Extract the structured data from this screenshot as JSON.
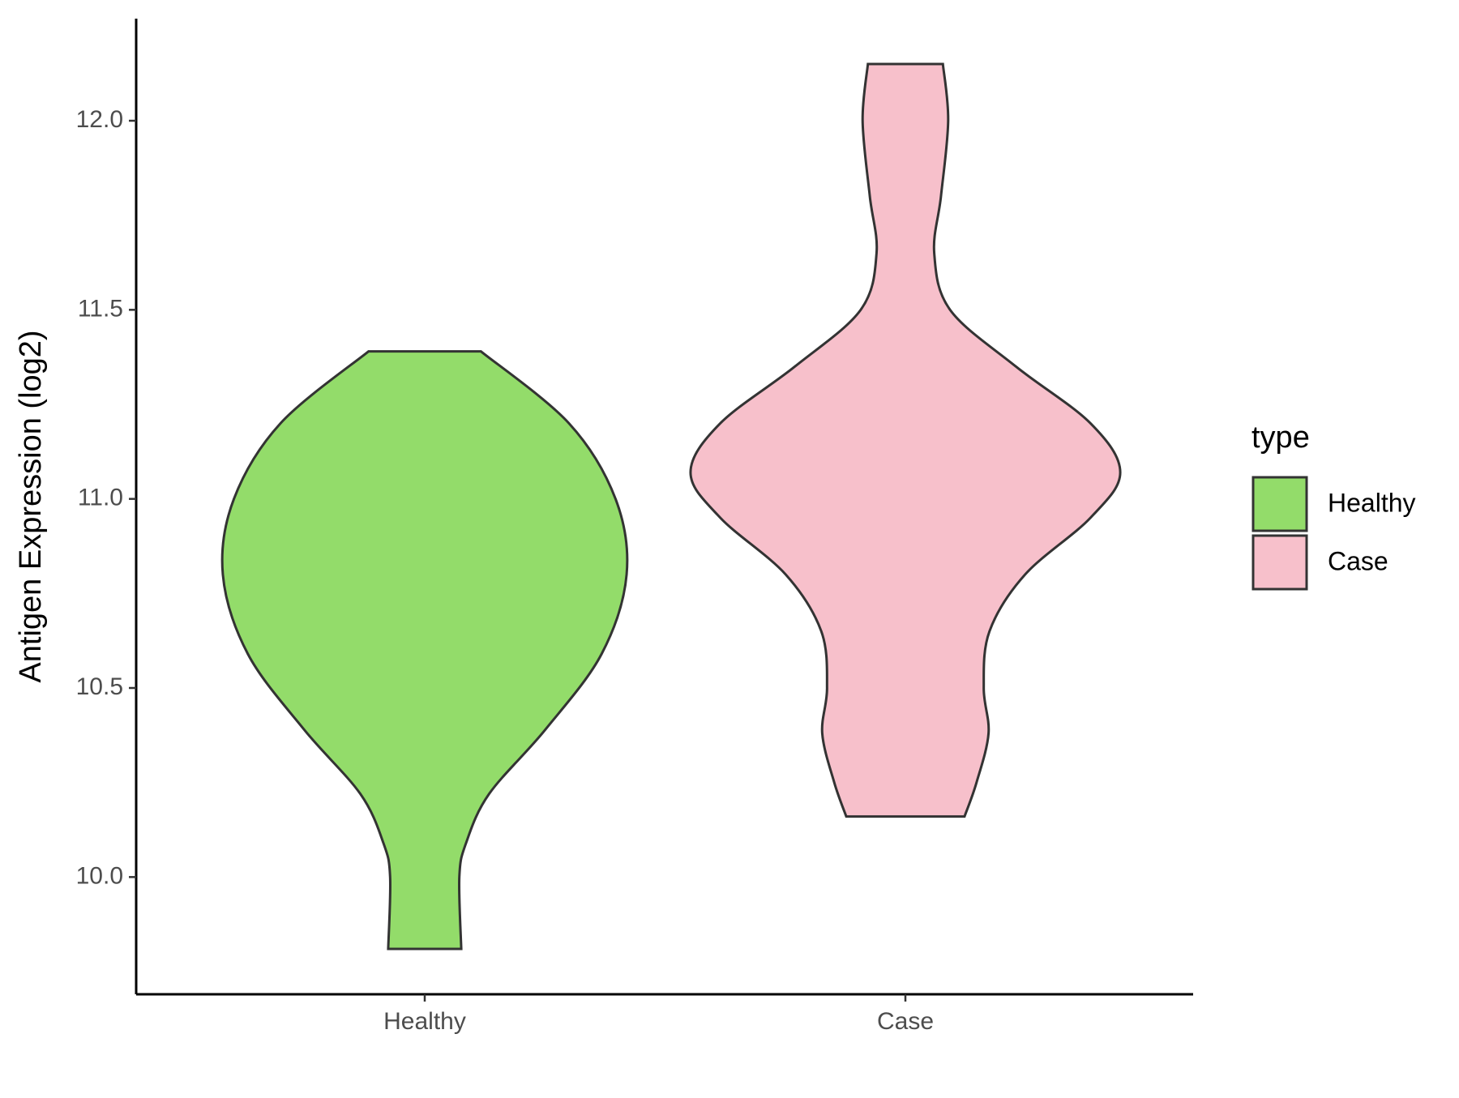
{
  "chart_data": {
    "type": "violin",
    "y_label": "Antigen Expression (log2)",
    "categories": [
      "Healthy",
      "Case"
    ],
    "series": [
      {
        "name": "Healthy",
        "color": "#93dc6a",
        "y": [
          11.39,
          11.2,
          11.0,
          10.8,
          10.59,
          10.39,
          10.22,
          10.09,
          10.0,
          9.81
        ],
        "width": [
          0.117,
          0.3,
          0.397,
          0.42,
          0.368,
          0.251,
          0.134,
          0.086,
          0.072,
          0.076
        ]
      },
      {
        "name": "Case",
        "color": "#f7c0cb",
        "y": [
          12.15,
          12.0,
          11.8,
          11.65,
          11.5,
          11.35,
          11.2,
          11.07,
          10.95,
          10.8,
          10.65,
          10.5,
          10.38,
          10.25,
          10.16
        ],
        "width": [
          0.078,
          0.089,
          0.074,
          0.06,
          0.093,
          0.23,
          0.385,
          0.447,
          0.385,
          0.249,
          0.175,
          0.163,
          0.173,
          0.148,
          0.123
        ]
      }
    ],
    "ylim": [
      9.69,
      12.27
    ],
    "yticks": [
      {
        "value": 10,
        "label": "10.0"
      },
      10.5,
      {
        "value": 11,
        "label": "11.0"
      },
      11.5,
      {
        "value": 12,
        "label": "12.0"
      }
    ],
    "legend_title": "type",
    "legend_position": "right"
  }
}
